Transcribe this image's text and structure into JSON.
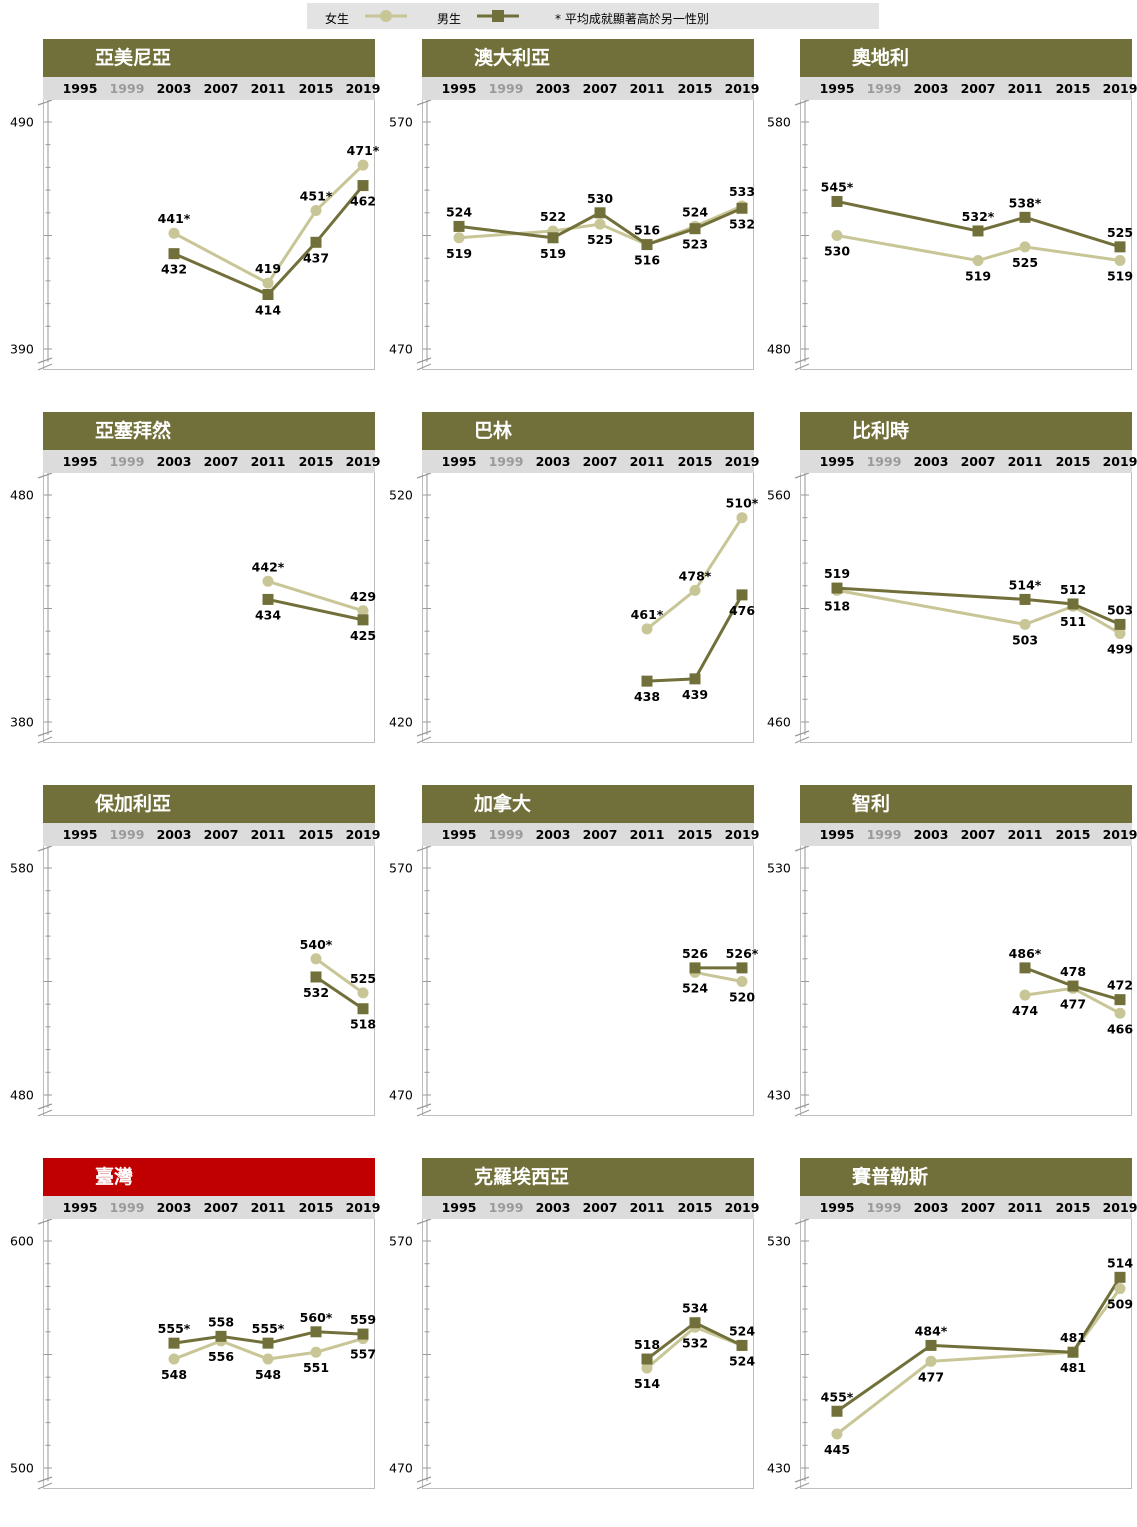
{
  "legend": {
    "female_label": "女生",
    "male_label": "男生",
    "note": "* 平均成就顯著高於另一性別",
    "colors": {
      "female": "#c8c696",
      "male": "#72703a",
      "highlight": "#c00000"
    }
  },
  "years": [
    "1995",
    "1999",
    "2003",
    "2007",
    "2011",
    "2015",
    "2019"
  ],
  "dim_years": [
    "1999"
  ],
  "chart_data": [
    {
      "type": "line",
      "title": "亞美尼亞",
      "ylim": [
        390,
        490
      ],
      "x": [
        "2003",
        "2011",
        "2015",
        "2019"
      ],
      "series": [
        {
          "name": "女生",
          "values": [
            441,
            419,
            451,
            471
          ],
          "labels": [
            "441*",
            "419",
            "451*",
            "471*"
          ]
        },
        {
          "name": "男生",
          "values": [
            432,
            414,
            437,
            462
          ],
          "labels": [
            "432",
            "414",
            "437",
            "462"
          ]
        }
      ]
    },
    {
      "type": "line",
      "title": "澳大利亞",
      "ylim": [
        470,
        570
      ],
      "x": [
        "1995",
        "2003",
        "2007",
        "2011",
        "2015",
        "2019"
      ],
      "series": [
        {
          "name": "女生",
          "values": [
            519,
            522,
            525,
            516,
            524,
            533
          ],
          "labels": [
            "519",
            "522",
            "525",
            "516",
            "524",
            "533"
          ]
        },
        {
          "name": "男生",
          "values": [
            524,
            519,
            530,
            516,
            523,
            532
          ],
          "labels": [
            "524",
            "519",
            "530",
            "516",
            "523",
            "532"
          ]
        }
      ]
    },
    {
      "type": "line",
      "title": "奧地利",
      "ylim": [
        480,
        580
      ],
      "x": [
        "1995",
        "2007",
        "2011",
        "2019"
      ],
      "series": [
        {
          "name": "女生",
          "values": [
            530,
            519,
            525,
            519
          ],
          "labels": [
            "530",
            "519",
            "525",
            "519"
          ]
        },
        {
          "name": "男生",
          "values": [
            545,
            532,
            538,
            525
          ],
          "labels": [
            "545*",
            "532*",
            "538*",
            "525"
          ]
        }
      ]
    },
    {
      "type": "line",
      "title": "亞塞拜然",
      "ylim": [
        380,
        480
      ],
      "x": [
        "2011",
        "2019"
      ],
      "series": [
        {
          "name": "女生",
          "values": [
            442,
            429
          ],
          "labels": [
            "442*",
            "429"
          ]
        },
        {
          "name": "男生",
          "values": [
            434,
            425
          ],
          "labels": [
            "434",
            "425"
          ]
        }
      ]
    },
    {
      "type": "line",
      "title": "巴林",
      "ylim": [
        420,
        520
      ],
      "x": [
        "2011",
        "2015",
        "2019"
      ],
      "series": [
        {
          "name": "女生",
          "values": [
            461,
            478,
            510
          ],
          "labels": [
            "461*",
            "478*",
            "510*"
          ]
        },
        {
          "name": "男生",
          "values": [
            438,
            439,
            476
          ],
          "labels": [
            "438",
            "439",
            "476"
          ]
        }
      ]
    },
    {
      "type": "line",
      "title": "比利時",
      "ylim": [
        460,
        560
      ],
      "x": [
        "1995",
        "2011",
        "2015",
        "2019"
      ],
      "series": [
        {
          "name": "女生",
          "values": [
            518,
            503,
            511,
            499
          ],
          "labels": [
            "518",
            "503",
            "511",
            "499"
          ]
        },
        {
          "name": "男生",
          "values": [
            519,
            514,
            512,
            503
          ],
          "labels": [
            "519",
            "514*",
            "512",
            "503"
          ]
        }
      ]
    },
    {
      "type": "line",
      "title": "保加利亞",
      "ylim": [
        480,
        580
      ],
      "x": [
        "2015",
        "2019"
      ],
      "series": [
        {
          "name": "女生",
          "values": [
            540,
            525
          ],
          "labels": [
            "540*",
            "525"
          ]
        },
        {
          "name": "男生",
          "values": [
            532,
            518
          ],
          "labels": [
            "532",
            "518"
          ]
        }
      ]
    },
    {
      "type": "line",
      "title": "加拿大",
      "ylim": [
        470,
        570
      ],
      "x": [
        "2015",
        "2019"
      ],
      "series": [
        {
          "name": "女生",
          "values": [
            524,
            520
          ],
          "labels": [
            "524",
            "520"
          ]
        },
        {
          "name": "男生",
          "values": [
            526,
            526
          ],
          "labels": [
            "526",
            "526*"
          ]
        }
      ]
    },
    {
      "type": "line",
      "title": "智利",
      "ylim": [
        430,
        530
      ],
      "x": [
        "2011",
        "2015",
        "2019"
      ],
      "series": [
        {
          "name": "女生",
          "values": [
            474,
            477,
            466
          ],
          "labels": [
            "474",
            "477",
            "466"
          ]
        },
        {
          "name": "男生",
          "values": [
            486,
            478,
            472
          ],
          "labels": [
            "486*",
            "478",
            "472"
          ]
        }
      ]
    },
    {
      "type": "line",
      "title": "臺灣",
      "ylim": [
        500,
        600
      ],
      "highlight": true,
      "x": [
        "2003",
        "2007",
        "2011",
        "2015",
        "2019"
      ],
      "series": [
        {
          "name": "女生",
          "values": [
            548,
            556,
            548,
            551,
            557
          ],
          "labels": [
            "548",
            "556",
            "548",
            "551",
            "557"
          ]
        },
        {
          "name": "男生",
          "values": [
            555,
            558,
            555,
            560,
            559
          ],
          "labels": [
            "555*",
            "558",
            "555*",
            "560*",
            "559"
          ]
        }
      ]
    },
    {
      "type": "line",
      "title": "克羅埃西亞",
      "ylim": [
        470,
        570
      ],
      "x": [
        "2011",
        "2015",
        "2019"
      ],
      "series": [
        {
          "name": "女生",
          "values": [
            514,
            532,
            524
          ],
          "labels": [
            "514",
            "532",
            "524"
          ]
        },
        {
          "name": "男生",
          "values": [
            518,
            534,
            524
          ],
          "labels": [
            "518",
            "534",
            "524"
          ]
        }
      ]
    },
    {
      "type": "line",
      "title": "賽普勒斯",
      "ylim": [
        430,
        530
      ],
      "x": [
        "1995",
        "2003",
        "2015",
        "2019"
      ],
      "series": [
        {
          "name": "女生",
          "values": [
            445,
            477,
            481,
            509
          ],
          "labels": [
            "445",
            "477",
            "481",
            "509"
          ]
        },
        {
          "name": "男生",
          "values": [
            455,
            484,
            481,
            514
          ],
          "labels": [
            "455*",
            "484*",
            "481",
            "514"
          ]
        }
      ]
    }
  ]
}
